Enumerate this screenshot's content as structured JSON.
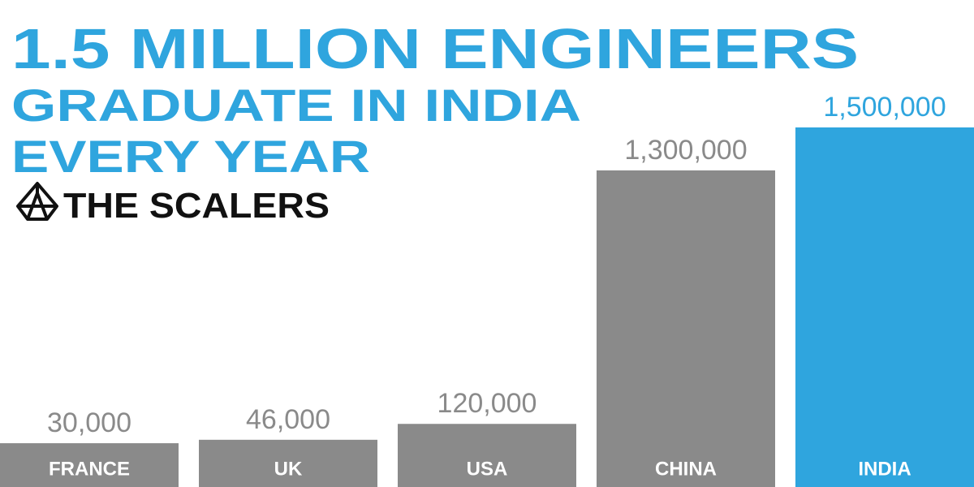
{
  "chart_data": {
    "type": "bar",
    "title": [
      "1.5 MILLION ENGINEERS",
      "GRADUATE IN INDIA",
      "EVERY YEAR"
    ],
    "brand": "THE SCALERS",
    "categories": [
      "FRANCE",
      "UK",
      "USA",
      "CHINA",
      "INDIA"
    ],
    "values": [
      30000,
      46000,
      120000,
      1300000,
      1500000
    ],
    "value_labels": [
      "30,000",
      "46,000",
      "120,000",
      "1,300,000",
      "1,500,000"
    ],
    "colors": [
      "#8a8a8a",
      "#8a8a8a",
      "#8a8a8a",
      "#8a8a8a",
      "#2fa5de"
    ],
    "ylim": [
      0,
      1500000
    ]
  }
}
